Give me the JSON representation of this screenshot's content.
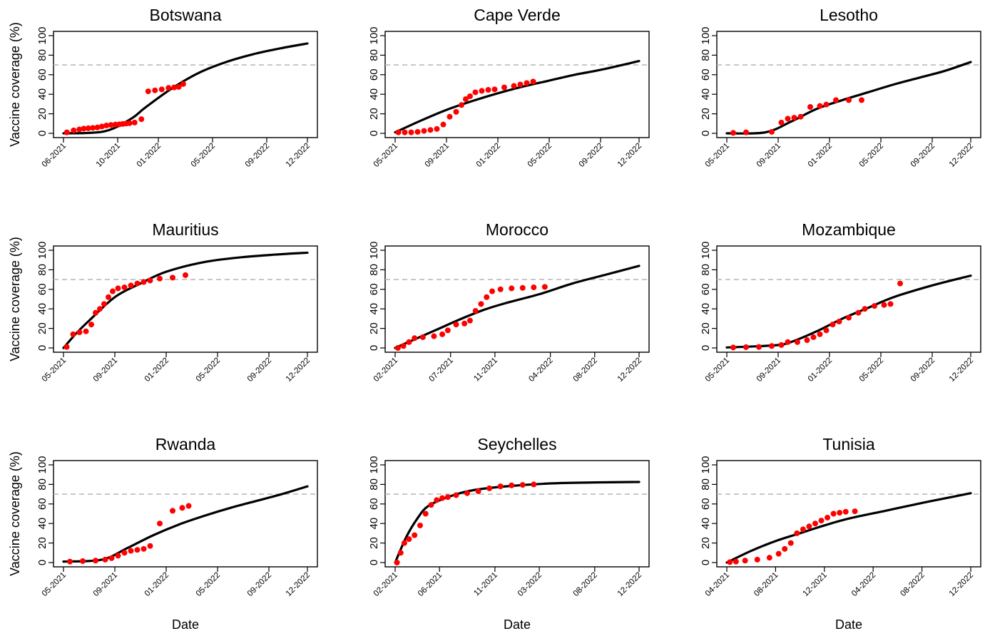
{
  "colors": {
    "points": "#ff0000",
    "fit_line": "#000000",
    "threshold_line": "#bbbbbb",
    "axes": "#000000"
  },
  "chart_data": [
    {
      "type": "scatter",
      "title": "Botswana",
      "ylabel": "Vaccine coverage (%)",
      "xlabel": "",
      "xticks": [
        "06-2021",
        "10-2021",
        "01-2022",
        "05-2022",
        "09-2022",
        "12-2022"
      ],
      "xrange": [
        "06-2021",
        "12-2022"
      ],
      "ylim": [
        0,
        100
      ],
      "yticks": [
        0,
        20,
        40,
        60,
        80,
        100
      ],
      "threshold": 70,
      "series": [
        {
          "kind": "observed",
          "x": [
            "06-2021",
            "06-2021",
            "07-2021",
            "07-2021",
            "07-2021",
            "08-2021",
            "08-2021",
            "08-2021",
            "09-2021",
            "09-2021",
            "09-2021",
            "10-2021",
            "10-2021",
            "10-2021",
            "10-2021",
            "11-2021",
            "11-2021",
            "12-2021",
            "12-2021",
            "01-2022",
            "01-2022",
            "02-2022",
            "02-2022",
            "02-2022"
          ],
          "y": [
            1,
            3,
            4,
            4.8,
            5.2,
            5.6,
            6,
            7,
            8,
            8.6,
            9,
            9.2,
            9.6,
            10,
            10.4,
            11,
            14.5,
            43,
            44,
            45,
            46.5,
            47,
            47.5,
            50.5
          ]
        },
        {
          "kind": "fit",
          "x": [
            "06-2021",
            "09-2021",
            "11-2021",
            "12-2021",
            "02-2022",
            "04-2022",
            "06-2022",
            "08-2022",
            "10-2022",
            "12-2022"
          ],
          "y": [
            0,
            2,
            15,
            26,
            46,
            62,
            73,
            81,
            87,
            92
          ]
        }
      ]
    },
    {
      "type": "scatter",
      "title": "Cape Verde",
      "ylabel": "",
      "xlabel": "",
      "xticks": [
        "05-2021",
        "09-2021",
        "01-2022",
        "05-2022",
        "09-2022",
        "12-2022"
      ],
      "xrange": [
        "05-2021",
        "12-2022"
      ],
      "ylim": [
        0,
        100
      ],
      "yticks": [
        0,
        20,
        40,
        60,
        80,
        100
      ],
      "threshold": 70,
      "series": [
        {
          "kind": "observed",
          "x": [
            "05-2021",
            "05-2021",
            "06-2021",
            "06-2021",
            "07-2021",
            "07-2021",
            "08-2021",
            "08-2021",
            "09-2021",
            "09-2021",
            "10-2021",
            "10-2021",
            "10-2021",
            "11-2021",
            "11-2021",
            "12-2021",
            "12-2021",
            "01-2022",
            "02-2022",
            "02-2022",
            "03-2022",
            "03-2022"
          ],
          "y": [
            1,
            1,
            1,
            1.5,
            2.5,
            3.5,
            4.5,
            9,
            17,
            22,
            29,
            35,
            38,
            42,
            43.5,
            44.5,
            45,
            47,
            48.5,
            50,
            51.5,
            53
          ]
        },
        {
          "kind": "fit",
          "x": [
            "05-2021",
            "07-2021",
            "09-2021",
            "11-2021",
            "01-2022",
            "03-2022",
            "05-2022",
            "07-2022",
            "09-2022",
            "12-2022"
          ],
          "y": [
            1,
            13,
            24,
            33,
            41,
            48,
            54,
            60,
            65,
            74
          ]
        }
      ]
    },
    {
      "type": "scatter",
      "title": "Lesotho",
      "ylabel": "",
      "xlabel": "",
      "xticks": [
        "05-2021",
        "09-2021",
        "01-2022",
        "05-2022",
        "09-2022",
        "12-2022"
      ],
      "xrange": [
        "05-2021",
        "12-2022"
      ],
      "ylim": [
        0,
        100
      ],
      "yticks": [
        0,
        20,
        40,
        60,
        80,
        100
      ],
      "threshold": 70,
      "series": [
        {
          "kind": "observed",
          "x": [
            "05-2021",
            "06-2021",
            "08-2021",
            "09-2021",
            "09-2021",
            "10-2021",
            "10-2021",
            "11-2021",
            "12-2021",
            "12-2021",
            "01-2022",
            "02-2022",
            "03-2022"
          ],
          "y": [
            0.5,
            1,
            1.5,
            11,
            15,
            16,
            17,
            27,
            28,
            29.5,
            34,
            34,
            34
          ]
        },
        {
          "kind": "fit",
          "x": [
            "05-2021",
            "08-2021",
            "10-2021",
            "12-2021",
            "02-2022",
            "04-2022",
            "06-2022",
            "08-2022",
            "10-2022",
            "12-2022"
          ],
          "y": [
            0,
            1,
            12,
            25,
            34,
            42,
            50,
            57,
            64,
            73
          ]
        }
      ]
    },
    {
      "type": "scatter",
      "title": "Mauritius",
      "ylabel": "Vaccine coverage (%)",
      "xlabel": "",
      "xticks": [
        "05-2021",
        "09-2021",
        "01-2022",
        "05-2022",
        "09-2022",
        "12-2022"
      ],
      "xrange": [
        "05-2021",
        "12-2022"
      ],
      "ylim": [
        0,
        100
      ],
      "yticks": [
        0,
        20,
        40,
        60,
        80,
        100
      ],
      "threshold": 70,
      "series": [
        {
          "kind": "observed",
          "x": [
            "05-2021",
            "05-2021",
            "06-2021",
            "06-2021",
            "07-2021",
            "07-2021",
            "07-2021",
            "08-2021",
            "08-2021",
            "08-2021",
            "09-2021",
            "09-2021",
            "10-2021",
            "10-2021",
            "11-2021",
            "11-2021",
            "12-2021",
            "01-2022",
            "02-2022"
          ],
          "y": [
            1,
            14,
            16,
            17,
            24,
            36,
            40,
            45,
            52,
            58,
            61,
            62,
            64,
            66,
            67.5,
            69,
            71,
            72,
            74.5
          ]
        },
        {
          "kind": "fit",
          "x": [
            "05-2021",
            "06-2021",
            "07-2021",
            "09-2021",
            "11-2021",
            "01-2022",
            "04-2022",
            "07-2022",
            "10-2022",
            "12-2022"
          ],
          "y": [
            0,
            15,
            28,
            52,
            66,
            78,
            88,
            93,
            96,
            97.5
          ]
        }
      ]
    },
    {
      "type": "scatter",
      "title": "Morocco",
      "ylabel": "",
      "xlabel": "",
      "xticks": [
        "02-2021",
        "07-2021",
        "11-2021",
        "04-2022",
        "08-2022",
        "12-2022"
      ],
      "xrange": [
        "02-2021",
        "12-2022"
      ],
      "ylim": [
        0,
        100
      ],
      "yticks": [
        0,
        20,
        40,
        60,
        80,
        100
      ],
      "threshold": 70,
      "series": [
        {
          "kind": "observed",
          "x": [
            "02-2021",
            "02-2021",
            "03-2021",
            "03-2021",
            "04-2021",
            "05-2021",
            "06-2021",
            "06-2021",
            "07-2021",
            "08-2021",
            "08-2021",
            "09-2021",
            "09-2021",
            "10-2021",
            "10-2021",
            "11-2021",
            "12-2021",
            "01-2022",
            "02-2022",
            "03-2022"
          ],
          "y": [
            0,
            2,
            6,
            10,
            11,
            12,
            14,
            18,
            24,
            25,
            28,
            38,
            45,
            52,
            58,
            60,
            61,
            61.5,
            62,
            62.5
          ]
        },
        {
          "kind": "fit",
          "x": [
            "02-2021",
            "04-2021",
            "06-2021",
            "08-2021",
            "10-2021",
            "12-2021",
            "03-2022",
            "06-2022",
            "09-2022",
            "12-2022"
          ],
          "y": [
            0,
            10,
            20,
            30,
            39,
            46,
            55,
            66,
            75,
            84
          ]
        }
      ]
    },
    {
      "type": "scatter",
      "title": "Mozambique",
      "ylabel": "",
      "xlabel": "",
      "xticks": [
        "05-2021",
        "09-2021",
        "01-2022",
        "05-2022",
        "09-2022",
        "12-2022"
      ],
      "xrange": [
        "05-2021",
        "12-2022"
      ],
      "ylim": [
        0,
        100
      ],
      "yticks": [
        0,
        20,
        40,
        60,
        80,
        100
      ],
      "threshold": 70,
      "series": [
        {
          "kind": "observed",
          "x": [
            "05-2021",
            "06-2021",
            "07-2021",
            "08-2021",
            "09-2021",
            "09-2021",
            "10-2021",
            "11-2021",
            "11-2021",
            "12-2021",
            "12-2021",
            "01-2022",
            "01-2022",
            "02-2022",
            "03-2022",
            "03-2022",
            "04-2022",
            "05-2022",
            "05-2022",
            "06-2022"
          ],
          "y": [
            0.5,
            0.8,
            1,
            2,
            3,
            6,
            6,
            8,
            11,
            14,
            18,
            24,
            27,
            31,
            36,
            40,
            43,
            44,
            45,
            66
          ]
        },
        {
          "kind": "fit",
          "x": [
            "05-2021",
            "07-2021",
            "09-2021",
            "10-2021",
            "12-2021",
            "02-2022",
            "04-2022",
            "06-2022",
            "09-2022",
            "12-2022"
          ],
          "y": [
            0.5,
            1.5,
            3,
            6,
            17,
            30,
            41,
            52,
            64,
            74
          ]
        }
      ]
    },
    {
      "type": "scatter",
      "title": "Rwanda",
      "ylabel": "Vaccine coverage (%)",
      "xlabel": "Date",
      "xticks": [
        "05-2021",
        "09-2021",
        "01-2022",
        "05-2022",
        "09-2022",
        "12-2022"
      ],
      "xrange": [
        "05-2021",
        "12-2022"
      ],
      "ylim": [
        0,
        100
      ],
      "yticks": [
        0,
        20,
        40,
        60,
        80,
        100
      ],
      "threshold": 70,
      "series": [
        {
          "kind": "observed",
          "x": [
            "05-2021",
            "06-2021",
            "07-2021",
            "08-2021",
            "08-2021",
            "09-2021",
            "09-2021",
            "10-2021",
            "10-2021",
            "11-2021",
            "11-2021",
            "12-2021",
            "01-2022",
            "02-2022",
            "02-2022"
          ],
          "y": [
            1,
            1.5,
            2,
            3,
            4.5,
            7,
            10,
            12,
            13,
            14,
            17,
            40,
            53,
            56,
            58
          ]
        },
        {
          "kind": "fit",
          "x": [
            "05-2021",
            "08-2021",
            "10-2021",
            "12-2021",
            "02-2022",
            "04-2022",
            "06-2022",
            "08-2022",
            "10-2022",
            "12-2022"
          ],
          "y": [
            1,
            3,
            15,
            28,
            39,
            48,
            56,
            63,
            70,
            78
          ]
        }
      ]
    },
    {
      "type": "scatter",
      "title": "Seychelles",
      "ylabel": "",
      "xlabel": "Date",
      "xticks": [
        "02-2021",
        "06-2021",
        "11-2021",
        "03-2022",
        "08-2022",
        "12-2022"
      ],
      "xrange": [
        "02-2021",
        "12-2022"
      ],
      "ylim": [
        0,
        100
      ],
      "yticks": [
        0,
        20,
        40,
        60,
        80,
        100
      ],
      "threshold": 70,
      "series": [
        {
          "kind": "observed",
          "x": [
            "02-2021",
            "02-2021",
            "02-2021",
            "03-2021",
            "03-2021",
            "04-2021",
            "04-2021",
            "05-2021",
            "05-2021",
            "06-2021",
            "06-2021",
            "07-2021",
            "08-2021",
            "09-2021",
            "10-2021",
            "11-2021",
            "12-2021",
            "01-2022",
            "02-2022"
          ],
          "y": [
            0,
            10,
            20,
            24,
            28,
            38,
            50,
            59,
            64,
            66,
            67,
            69,
            71,
            73,
            76,
            78,
            79,
            79.5,
            80
          ]
        },
        {
          "kind": "fit",
          "x": [
            "02-2021",
            "03-2021",
            "04-2021",
            "05-2021",
            "07-2021",
            "09-2021",
            "12-2021",
            "04-2022",
            "08-2022",
            "12-2022"
          ],
          "y": [
            0,
            26,
            45,
            58,
            68,
            74,
            78,
            81,
            82,
            82.5
          ]
        }
      ]
    },
    {
      "type": "scatter",
      "title": "Tunisia",
      "ylabel": "",
      "xlabel": "Date",
      "xticks": [
        "04-2021",
        "08-2021",
        "12-2021",
        "04-2022",
        "08-2022",
        "12-2022"
      ],
      "xrange": [
        "04-2021",
        "12-2022"
      ],
      "ylim": [
        0,
        100
      ],
      "yticks": [
        0,
        20,
        40,
        60,
        80,
        100
      ],
      "threshold": 70,
      "series": [
        {
          "kind": "observed",
          "x": [
            "04-2021",
            "04-2021",
            "05-2021",
            "06-2021",
            "07-2021",
            "08-2021",
            "08-2021",
            "09-2021",
            "09-2021",
            "10-2021",
            "10-2021",
            "11-2021",
            "11-2021",
            "12-2021",
            "12-2021",
            "01-2022",
            "01-2022",
            "02-2022"
          ],
          "y": [
            0.5,
            1,
            2,
            3,
            5,
            9,
            14,
            20,
            30,
            34,
            37,
            40,
            43,
            46,
            50,
            51,
            52,
            52.5
          ]
        },
        {
          "kind": "fit",
          "x": [
            "04-2021",
            "06-2021",
            "08-2021",
            "10-2021",
            "12-2021",
            "02-2022",
            "05-2022",
            "08-2022",
            "10-2022",
            "12-2022"
          ],
          "y": [
            0,
            12,
            22,
            30,
            38,
            45,
            53,
            61,
            66,
            71
          ]
        }
      ]
    }
  ]
}
